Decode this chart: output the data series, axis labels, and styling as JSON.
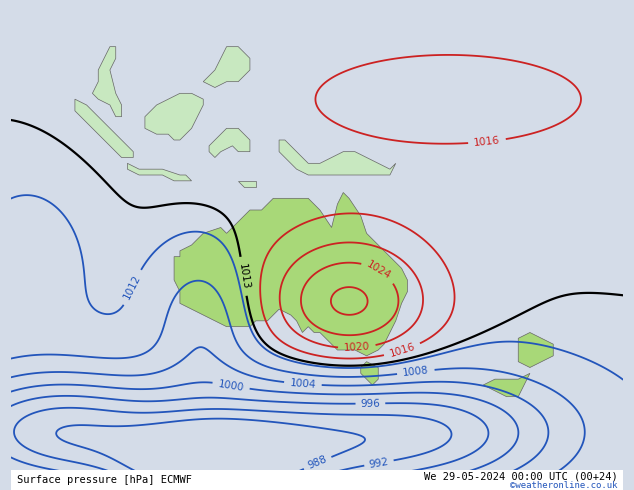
{
  "title_left": "Surface pressure [hPa] ECMWF",
  "title_right": "We 29-05-2024 00:00 UTC (00+24)",
  "copyright": "©weatheronline.co.uk",
  "bg_color": "#d4dce8",
  "land_color": "#c8e8c0",
  "australia_color": "#a8d878",
  "figsize": [
    6.34,
    4.9
  ],
  "dpi": 100,
  "lon_min": 85,
  "lon_max": 190,
  "lat_min": -62,
  "lat_max": 22
}
